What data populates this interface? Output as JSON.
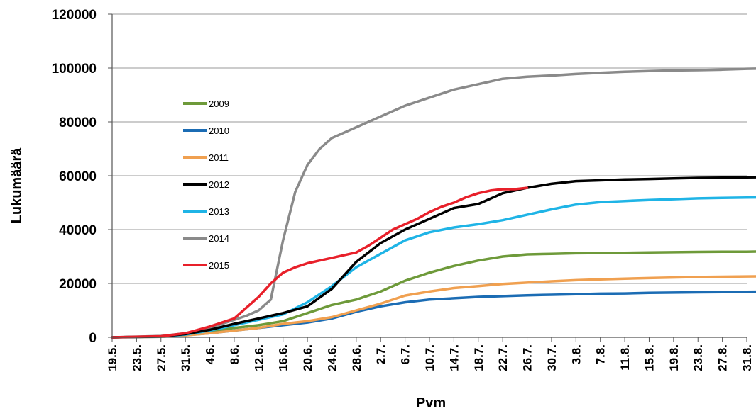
{
  "chart_data": {
    "type": "line",
    "xlabel": "Pvm",
    "ylabel": "Lukumäärä",
    "ylim": [
      0,
      120000
    ],
    "y_ticks": [
      "0",
      "20000",
      "40000",
      "60000",
      "80000",
      "100000",
      "120000"
    ],
    "x_ticks": [
      "19.5.",
      "23.5.",
      "27.5.",
      "31.5.",
      "4.6.",
      "8.6.",
      "12.6.",
      "16.6.",
      "20.6.",
      "24.6.",
      "28.6.",
      "2.7.",
      "6.7.",
      "10.7.",
      "14.7.",
      "18.7.",
      "22.7.",
      "26.7.",
      "30.7.",
      "3.8.",
      "7.8.",
      "11.8.",
      "15.8.",
      "19.8.",
      "23.8.",
      "27.8.",
      "31.8."
    ],
    "x_unit": "day index from 19.5. (tick every 4 days)",
    "grid": "horizontal",
    "legend_position": "left-inside",
    "series": [
      {
        "name": "2009",
        "color": "#6e9a3a",
        "x": [
          0,
          8,
          12,
          16,
          20,
          24,
          28,
          32,
          36,
          40,
          44,
          48,
          52,
          56,
          60,
          64,
          68,
          72,
          76,
          80,
          84,
          88,
          92,
          96,
          100,
          104,
          108,
          111
        ],
        "y": [
          0,
          300,
          1000,
          2000,
          3500,
          4500,
          6000,
          9000,
          12000,
          14000,
          17000,
          21000,
          24000,
          26500,
          28500,
          30000,
          30800,
          31000,
          31200,
          31300,
          31400,
          31500,
          31600,
          31700,
          31800,
          31800,
          31900,
          31900
        ]
      },
      {
        "name": "2010",
        "color": "#1b6cb4",
        "x": [
          0,
          8,
          12,
          16,
          20,
          24,
          28,
          32,
          36,
          40,
          44,
          48,
          52,
          56,
          60,
          64,
          68,
          72,
          76,
          80,
          84,
          88,
          92,
          96,
          100,
          104,
          108,
          112,
          113
        ],
        "y": [
          0,
          200,
          800,
          1500,
          2500,
          3500,
          4500,
          5500,
          7000,
          9500,
          11500,
          13000,
          14000,
          14500,
          15000,
          15300,
          15600,
          15800,
          16000,
          16200,
          16300,
          16500,
          16600,
          16700,
          16800,
          16900,
          17000,
          17100,
          17100
        ]
      },
      {
        "name": "2011",
        "color": "#f0a050",
        "x": [
          0,
          8,
          12,
          16,
          20,
          24,
          28,
          32,
          36,
          40,
          44,
          48,
          52,
          56,
          60,
          64,
          68,
          72,
          76,
          80,
          84,
          88,
          92,
          96,
          100,
          104,
          108,
          112,
          113
        ],
        "y": [
          0,
          200,
          700,
          1500,
          2500,
          3500,
          5000,
          6000,
          7500,
          10000,
          12500,
          15500,
          17000,
          18300,
          19000,
          19800,
          20300,
          20800,
          21200,
          21500,
          21800,
          22000,
          22200,
          22400,
          22500,
          22600,
          22700,
          22800,
          22800
        ]
      },
      {
        "name": "2012",
        "color": "#000000",
        "x": [
          0,
          8,
          12,
          16,
          20,
          24,
          28,
          32,
          36,
          40,
          44,
          48,
          52,
          56,
          60,
          64,
          68,
          72,
          76,
          80,
          84,
          88,
          92,
          96,
          100,
          104,
          108,
          112,
          113
        ],
        "y": [
          0,
          300,
          1200,
          2800,
          5000,
          7000,
          9000,
          11500,
          18000,
          28000,
          35000,
          40000,
          44000,
          48000,
          49500,
          53500,
          55500,
          57000,
          58000,
          58300,
          58600,
          58800,
          59000,
          59200,
          59300,
          59400,
          59500,
          59500,
          59500
        ]
      },
      {
        "name": "2013",
        "color": "#1fb4e6",
        "x": [
          0,
          8,
          12,
          16,
          20,
          24,
          28,
          32,
          36,
          40,
          44,
          48,
          52,
          56,
          60,
          64,
          68,
          72,
          76,
          80,
          84,
          88,
          92,
          96,
          100,
          104,
          108,
          112
        ],
        "y": [
          0,
          300,
          1000,
          2500,
          4500,
          6500,
          8500,
          13000,
          19000,
          26000,
          31000,
          36000,
          39000,
          40800,
          42000,
          43500,
          45500,
          47500,
          49300,
          50200,
          50600,
          51000,
          51300,
          51600,
          51800,
          51900,
          52000,
          52000
        ]
      },
      {
        "name": "2014",
        "color": "#8a8a8a",
        "x": [
          0,
          8,
          12,
          16,
          20,
          22,
          24,
          26,
          28,
          30,
          32,
          34,
          36,
          40,
          44,
          48,
          52,
          56,
          60,
          64,
          68,
          72,
          76,
          80,
          84,
          88,
          92,
          96,
          100,
          104,
          108,
          110,
          112
        ],
        "y": [
          0,
          500,
          1500,
          3500,
          6500,
          8000,
          10000,
          14000,
          36000,
          54000,
          64000,
          70000,
          74000,
          78000,
          82000,
          86000,
          89000,
          92000,
          94000,
          96000,
          96800,
          97200,
          97800,
          98200,
          98600,
          98900,
          99100,
          99200,
          99400,
          99700,
          99900,
          100300,
          100000
        ]
      },
      {
        "name": "2015",
        "color": "#e8202a",
        "x": [
          0,
          8,
          12,
          16,
          20,
          22,
          24,
          26,
          28,
          30,
          32,
          34,
          36,
          38,
          40,
          42,
          44,
          46,
          48,
          50,
          52,
          54,
          56,
          58,
          60,
          62,
          64,
          66,
          68
        ],
        "y": [
          0,
          400,
          1500,
          4000,
          7000,
          11000,
          15000,
          20000,
          24000,
          26000,
          27500,
          28500,
          29500,
          30500,
          31500,
          34000,
          37000,
          40000,
          42000,
          44000,
          46500,
          48500,
          50000,
          52000,
          53500,
          54500,
          55000,
          55000,
          55500
        ]
      }
    ]
  }
}
